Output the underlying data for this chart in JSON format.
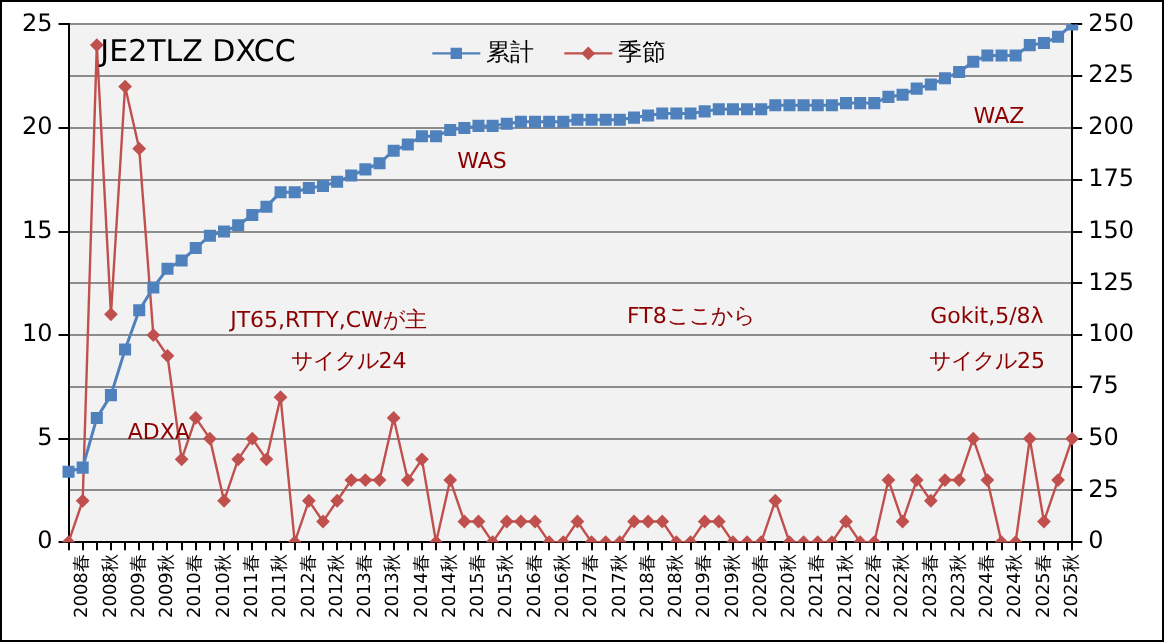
{
  "chart_data": {
    "type": "line",
    "title": "JE2TLZ DXCC",
    "categories": [
      null,
      "2008春",
      null,
      "2008秋",
      null,
      "2009春",
      null,
      "2009秋",
      null,
      "2010春",
      null,
      "2010秋",
      null,
      "2011春",
      null,
      "2011秋",
      null,
      "2012春",
      null,
      "2012秋",
      null,
      "2013春",
      null,
      "2013秋",
      null,
      "2014春",
      null,
      "2014秋",
      null,
      "2015春",
      null,
      "2015秋",
      null,
      "2016春",
      null,
      "2016秋",
      null,
      "2017春",
      null,
      "2017秋",
      null,
      "2018春",
      null,
      "2018秋",
      null,
      "2019春",
      null,
      "2019秋",
      null,
      "2020春",
      null,
      "2020秋",
      null,
      "2021春",
      null,
      "2021秋",
      null,
      "2022春",
      null,
      "2022秋",
      null,
      "2023春",
      null,
      "2023秋",
      null,
      "2024春",
      null,
      "2024秋",
      null,
      "2025春",
      null,
      "2025秋"
    ],
    "series": [
      {
        "name": "累計",
        "color": "#4f81bd",
        "axis": "y2",
        "marker": "square",
        "values": [
          34,
          36,
          60,
          71,
          93,
          112,
          123,
          132,
          136,
          142,
          148,
          150,
          153,
          158,
          162,
          169,
          169,
          171,
          172,
          174,
          177,
          180,
          183,
          189,
          192,
          196,
          196,
          199,
          200,
          201,
          201,
          202,
          203,
          203,
          203,
          203,
          204,
          204,
          204,
          204,
          205,
          206,
          207,
          207,
          207,
          208,
          209,
          209,
          209,
          209,
          211,
          211,
          211,
          211,
          211,
          212,
          212,
          212,
          215,
          216,
          219,
          221,
          224,
          227,
          232,
          235,
          235,
          235,
          240,
          241,
          244,
          250
        ]
      },
      {
        "name": "季節",
        "color": "#c0504d",
        "marker": "diamond",
        "values": [
          0,
          2,
          24,
          11,
          22,
          19,
          10,
          9,
          4,
          6,
          5,
          2,
          4,
          5,
          4,
          7,
          0,
          2,
          1,
          2,
          3,
          3,
          3,
          6,
          3,
          4,
          0,
          3,
          1,
          1,
          0,
          1,
          1,
          1,
          0,
          0,
          1,
          0,
          0,
          0,
          1,
          1,
          1,
          0,
          0,
          1,
          1,
          0,
          0,
          0,
          2,
          0,
          0,
          0,
          0,
          1,
          0,
          0,
          3,
          1,
          3,
          2,
          3,
          3,
          5,
          3,
          0,
          0,
          5,
          1,
          3,
          5
        ]
      }
    ],
    "ylim": [
      0,
      25
    ],
    "yticks": [
      0,
      5,
      10,
      15,
      20,
      25
    ],
    "y2lim": [
      0,
      250
    ],
    "y2ticks": [
      0,
      25,
      50,
      75,
      100,
      125,
      150,
      175,
      200,
      225,
      250
    ],
    "grid": "y",
    "legend": "top",
    "annotations": [
      "WAS",
      "WAZ",
      "JT65,RTTY,CWが主",
      "サイクル24",
      "ADXA",
      "FT8ここから",
      "Gokit,5/8λ",
      "サイクル25"
    ]
  }
}
